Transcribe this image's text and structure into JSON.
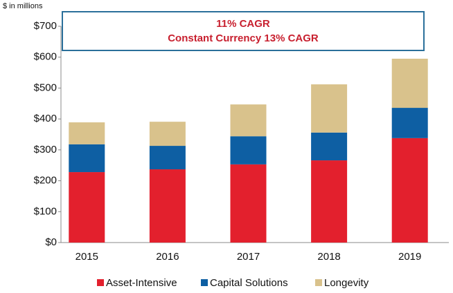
{
  "chart_data": {
    "type": "stacked_bar",
    "unit_label": "$ in millions",
    "annotations": [
      "11% CAGR",
      "Constant Currency 13% CAGR"
    ],
    "categories": [
      "2015",
      "2016",
      "2017",
      "2018",
      "2019"
    ],
    "series": [
      {
        "name": "Asset-Intensive",
        "color": "#e3202d",
        "values": [
          228,
          237,
          253,
          266,
          338
        ]
      },
      {
        "name": "Capital Solutions",
        "color": "#0e5fa3",
        "values": [
          90,
          76,
          91,
          90,
          98
        ]
      },
      {
        "name": "Longevity",
        "color": "#d9c28c",
        "values": [
          71,
          78,
          103,
          156,
          159
        ]
      }
    ],
    "ylim": [
      0,
      700
    ],
    "yticks": [
      {
        "value": 0,
        "label": "$0"
      },
      {
        "value": 100,
        "label": "$100"
      },
      {
        "value": 200,
        "label": "$200"
      },
      {
        "value": 300,
        "label": "$300"
      },
      {
        "value": 400,
        "label": "$400"
      },
      {
        "value": 500,
        "label": "$500"
      },
      {
        "value": 600,
        "label": "$600"
      },
      {
        "value": 700,
        "label": "$700"
      }
    ],
    "legend": "bottom"
  }
}
